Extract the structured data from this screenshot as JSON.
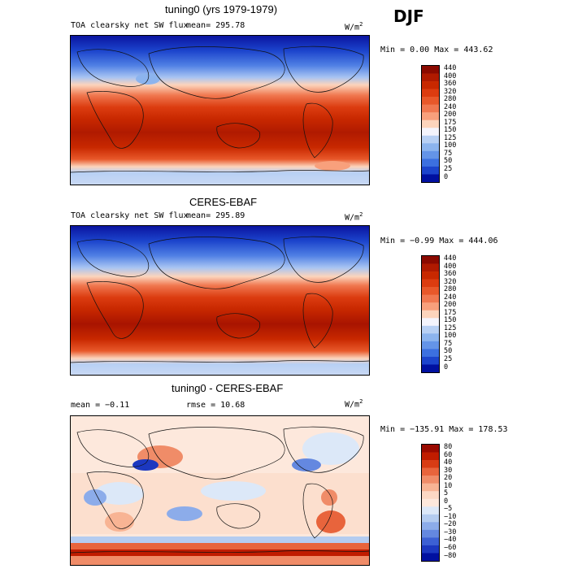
{
  "season": "DJF",
  "panels": [
    {
      "title": "tuning0 (yrs 1979-1979)",
      "subtitle": "TOA clearsky net SW flux",
      "mean": "mean= 295.78",
      "unit": "W/m",
      "unit_sup": "2",
      "minmax": "Min =   0.00 Max = 443.62",
      "colorbar": [
        "440",
        "400",
        "360",
        "320",
        "280",
        "240",
        "200",
        "175",
        "150",
        "125",
        "100",
        "75",
        "50",
        "25",
        "0"
      ],
      "colors": [
        "#8b0a00",
        "#b01a00",
        "#c82800",
        "#dc3c10",
        "#e8582a",
        "#f07850",
        "#f8a07c",
        "#fcd4bc",
        "#f4f4fc",
        "#b8d0f4",
        "#8cb4ee",
        "#6494e8",
        "#3c70e0",
        "#1c44cc",
        "#0010a0"
      ]
    },
    {
      "title": "CERES-EBAF",
      "subtitle": "TOA clearsky net SW flux",
      "mean": "mean= 295.89",
      "unit": "W/m",
      "unit_sup": "2",
      "minmax": "Min =  −0.99 Max = 444.06",
      "colorbar": [
        "440",
        "400",
        "360",
        "320",
        "280",
        "240",
        "200",
        "175",
        "150",
        "125",
        "100",
        "75",
        "50",
        "25",
        "0"
      ],
      "colors": [
        "#8b0a00",
        "#b01a00",
        "#c82800",
        "#dc3c10",
        "#e8582a",
        "#f07850",
        "#f8a07c",
        "#fcd4bc",
        "#f4f4fc",
        "#b8d0f4",
        "#8cb4ee",
        "#6494e8",
        "#3c70e0",
        "#1c44cc",
        "#0010a0"
      ]
    },
    {
      "title": "tuning0 - CERES-EBAF",
      "mean": "mean =  −0.11",
      "rmse": "rmse =  10.68",
      "unit": "W/m",
      "unit_sup": "2",
      "minmax": "Min = −135.91 Max = 178.53",
      "colorbar": [
        "80",
        "60",
        "40",
        "30",
        "20",
        "10",
        "5",
        "0",
        "−5",
        "−10",
        "−20",
        "−30",
        "−40",
        "−60",
        "−80"
      ],
      "colors": [
        "#9a0a00",
        "#c01c00",
        "#d83c14",
        "#e8643c",
        "#f08c68",
        "#f8b494",
        "#fcd8c4",
        "#fde8dc",
        "#dce8f8",
        "#b4ccf0",
        "#8cacea",
        "#6488e0",
        "#3c60d4",
        "#1c38c0",
        "#0010a0"
      ]
    }
  ],
  "chart_data": [
    {
      "type": "heatmap",
      "title": "tuning0 (yrs 1979-1979)",
      "subtitle": "TOA clearsky net SW flux",
      "mean": 295.78,
      "min": 0.0,
      "max": 443.62,
      "unit": "W/m2",
      "levels": [
        0,
        25,
        50,
        75,
        100,
        125,
        150,
        175,
        200,
        240,
        280,
        320,
        360,
        400,
        440
      ]
    },
    {
      "type": "heatmap",
      "title": "CERES-EBAF",
      "subtitle": "TOA clearsky net SW flux",
      "mean": 295.89,
      "min": -0.99,
      "max": 444.06,
      "unit": "W/m2",
      "levels": [
        0,
        25,
        50,
        75,
        100,
        125,
        150,
        175,
        200,
        240,
        280,
        320,
        360,
        400,
        440
      ]
    },
    {
      "type": "heatmap",
      "title": "tuning0 - CERES-EBAF",
      "mean": -0.11,
      "rmse": 10.68,
      "min": -135.91,
      "max": 178.53,
      "unit": "W/m2",
      "levels": [
        -80,
        -60,
        -40,
        -30,
        -20,
        -10,
        -5,
        0,
        5,
        10,
        20,
        30,
        40,
        60,
        80
      ]
    }
  ]
}
